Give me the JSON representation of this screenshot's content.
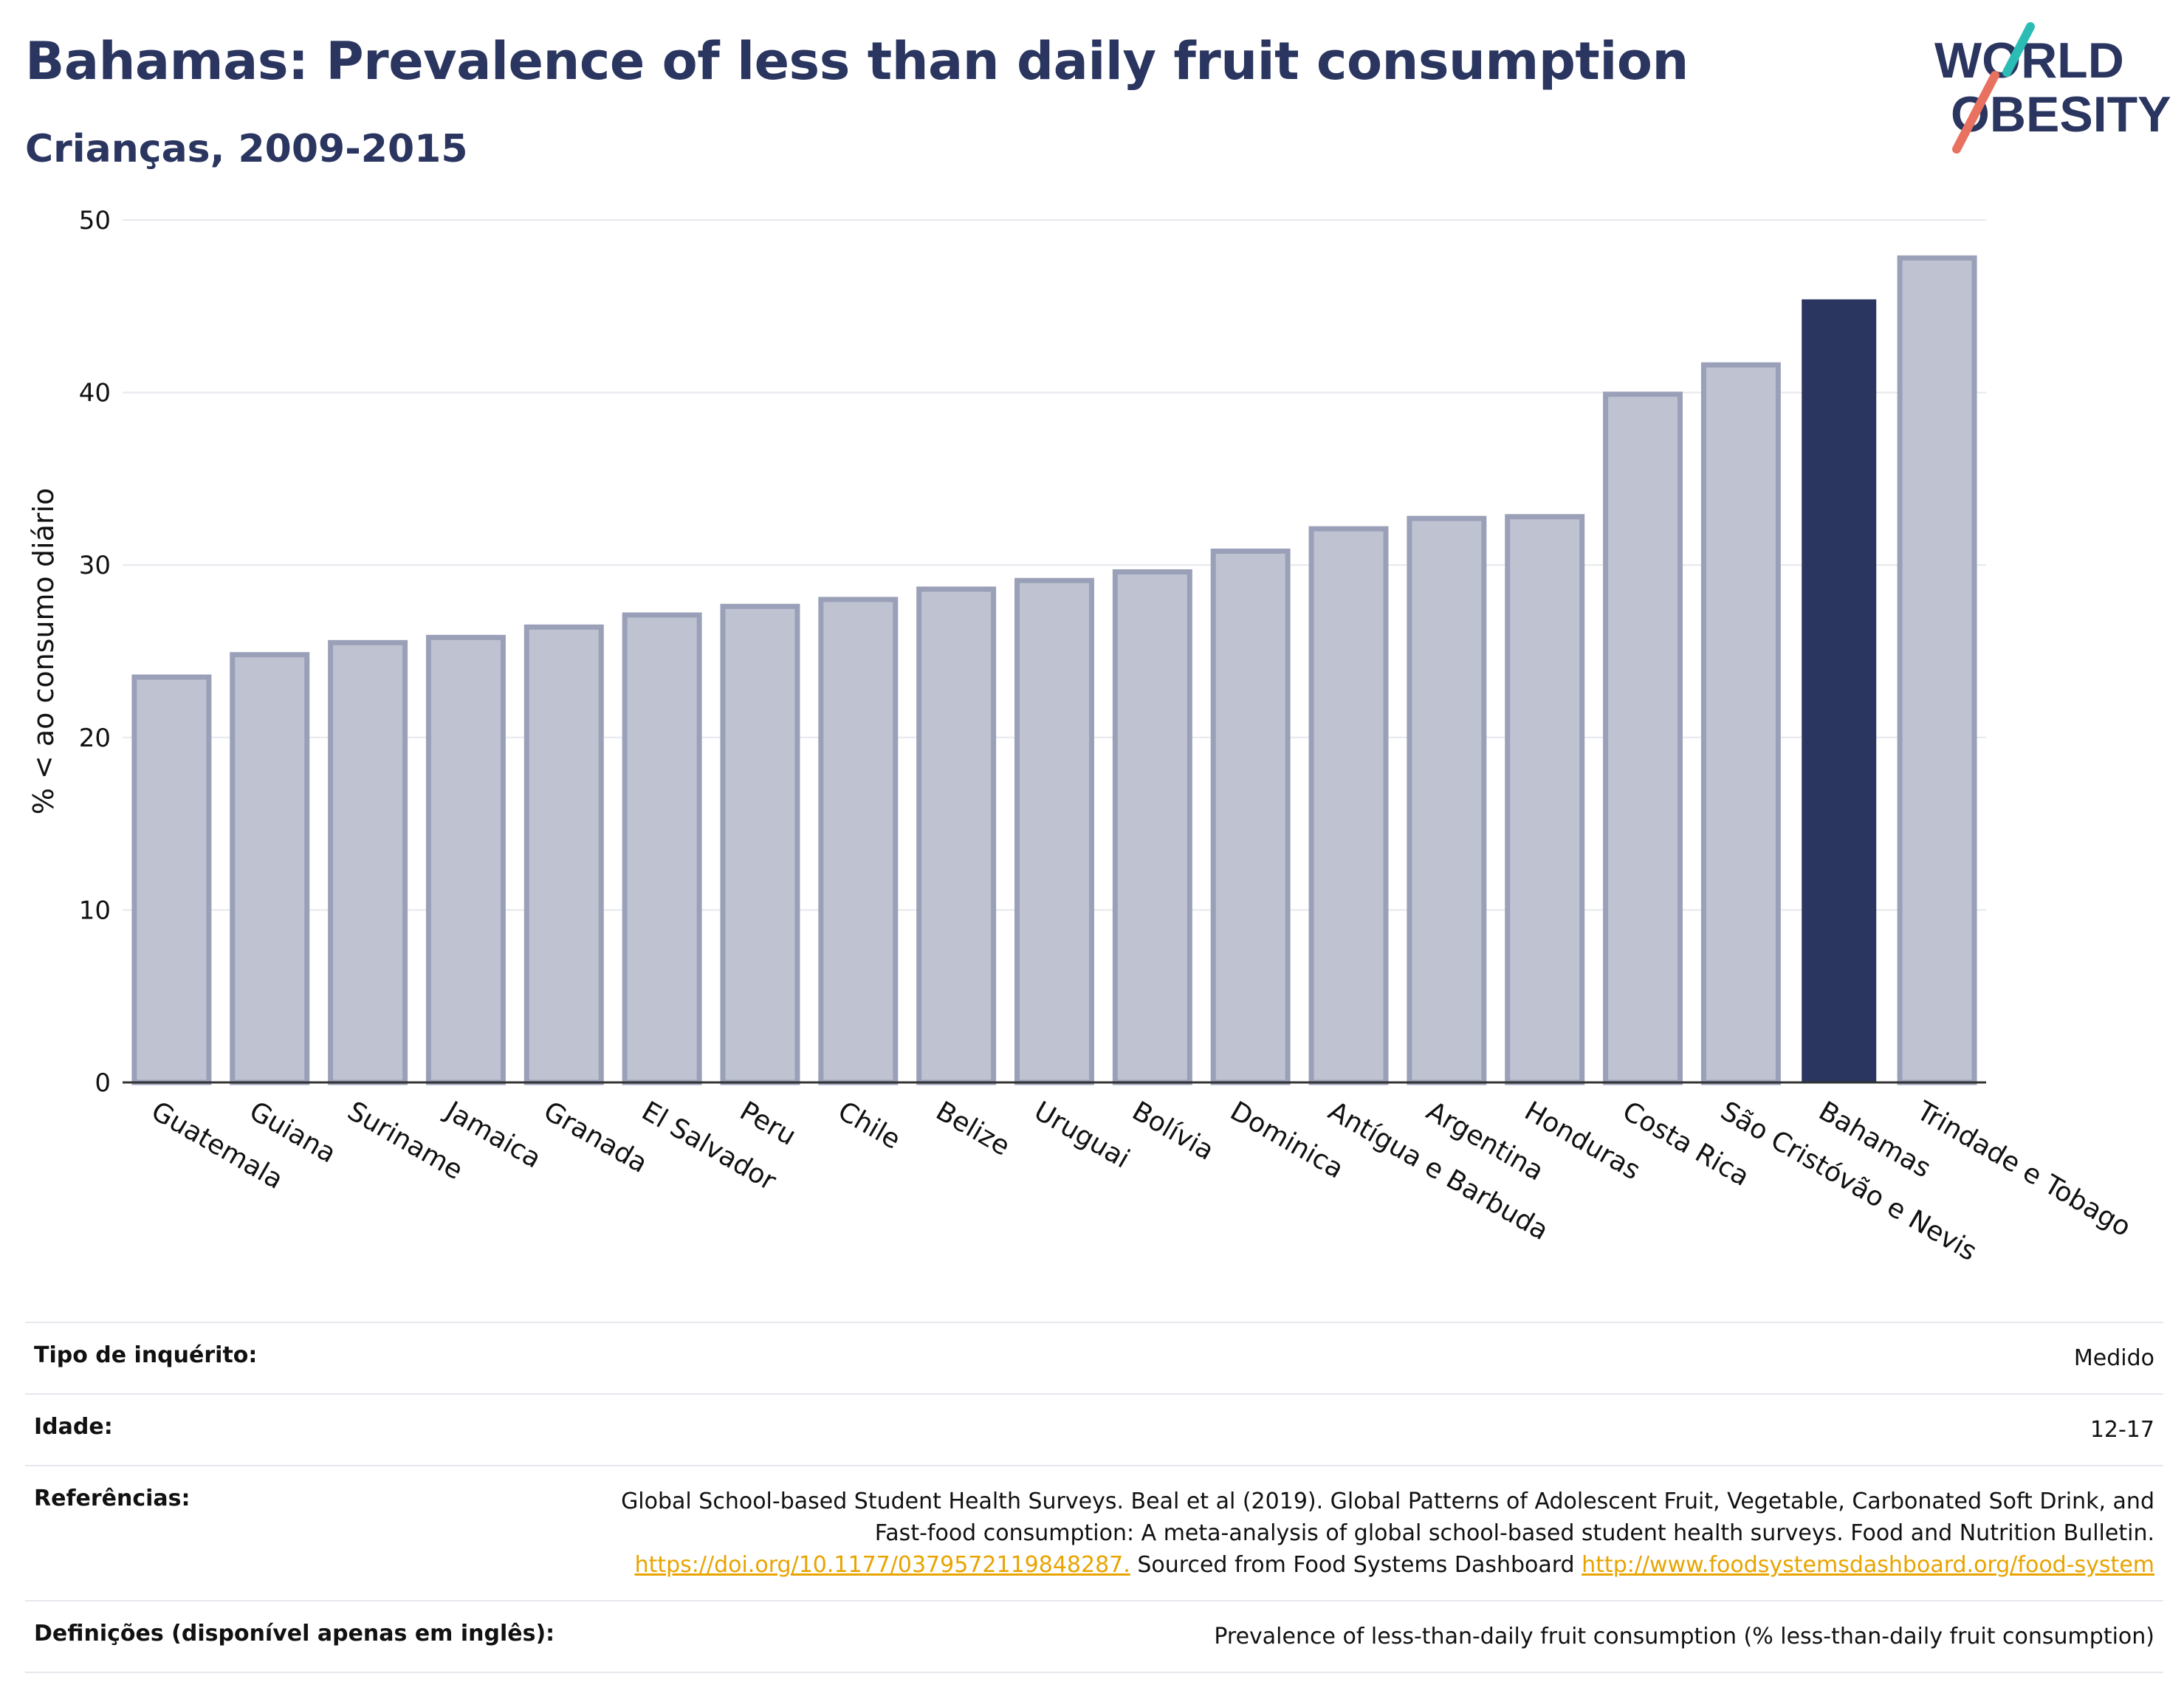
{
  "header": {
    "title": "Bahamas: Prevalence of less than daily fruit consumption",
    "subtitle": "Crianças, 2009-2015"
  },
  "logo": {
    "line1": "WORLD",
    "line2": "OBESITY",
    "accent_colors": [
      "#2bbdb5",
      "#e8715f"
    ]
  },
  "colors": {
    "highlight": "#2a3560",
    "bar_fill": "#bfc3d1",
    "bar_stroke": "#9aa0b8",
    "grid": "#e6e8ee",
    "link": "#e8a400"
  },
  "chart_data": {
    "type": "bar",
    "ylabel": "% < ao consumo diário",
    "ylim": [
      0,
      50
    ],
    "yticks": [
      0,
      10,
      20,
      30,
      40,
      50
    ],
    "grid": true,
    "categories": [
      "Guatemala",
      "Guiana",
      "Suriname",
      "Jamaica",
      "Granada",
      "El Salvador",
      "Peru",
      "Chile",
      "Belize",
      "Uruguai",
      "Bolívia",
      "Dominica",
      "Antígua e Barbuda",
      "Argentina",
      "Honduras",
      "Costa Rica",
      "São Cristóvão e Nevis",
      "Bahamas",
      "Trindade e Tobago"
    ],
    "values": [
      23.5,
      24.8,
      25.5,
      25.8,
      26.4,
      27.1,
      27.6,
      28.0,
      28.6,
      29.1,
      29.6,
      30.8,
      32.1,
      32.7,
      32.8,
      39.9,
      41.6,
      45.4,
      47.8
    ],
    "highlight": "Bahamas"
  },
  "info_table": [
    {
      "label": "Tipo de inquérito:",
      "value": "Medido"
    },
    {
      "label": "Idade:",
      "value": "12-17"
    },
    {
      "label": "Referências:",
      "text1": "Global School-based Student Health Surveys. Beal et al (2019). Global Patterns of Adolescent Fruit, Vegetable, Carbonated Soft Drink, and Fast-food consumption: A meta-analysis of global school-based student health surveys. Food and Nutrition Bulletin.",
      "link1": "https://doi.org/10.1177/0379572119848287.",
      "text2": "Sourced from Food Systems Dashboard",
      "link2": "http://www.foodsystemsdashboard.org/food-system"
    },
    {
      "label": "Definições (disponível apenas em inglês):",
      "value": "Prevalence of less-than-daily fruit consumption (% less-than-daily fruit consumption)"
    }
  ]
}
